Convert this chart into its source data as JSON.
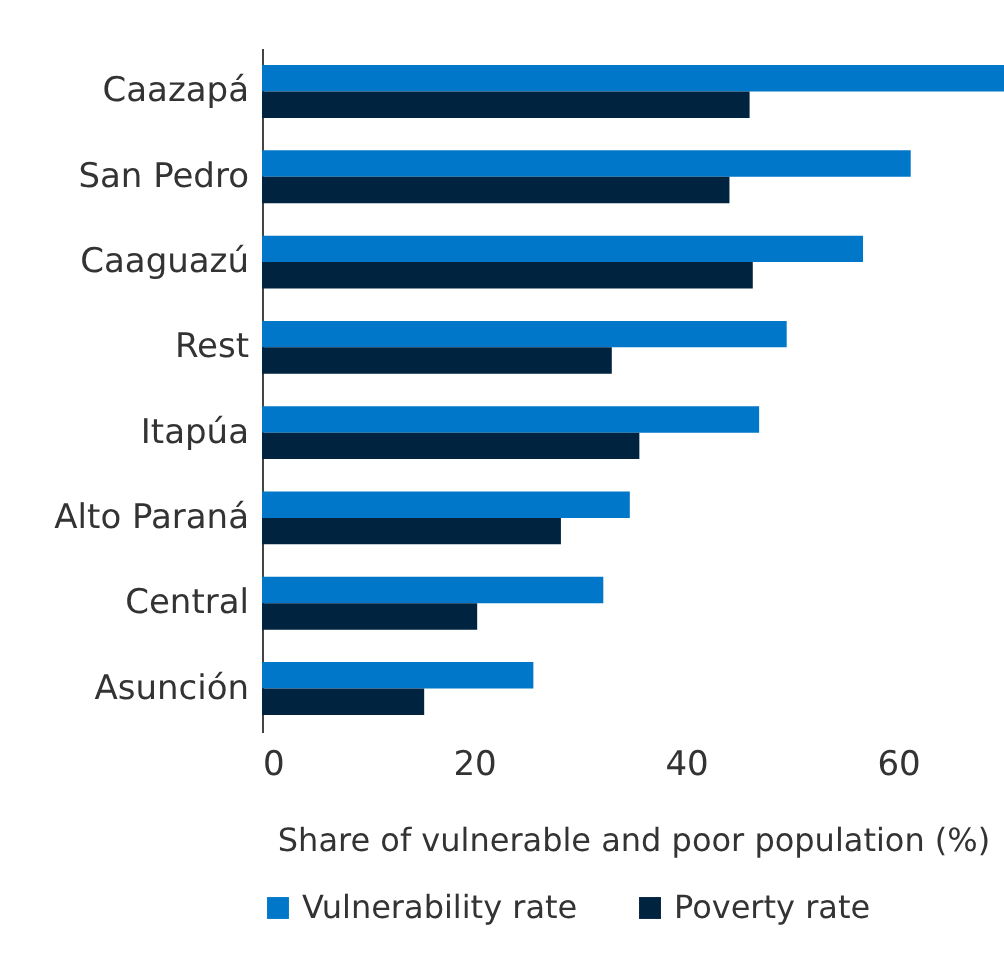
{
  "chart_data": {
    "type": "bar",
    "orientation": "horizontal",
    "xlabel": "Share of vulnerable and poor population (%)",
    "categories": [
      "Caazapá",
      "San Pedro",
      "Caaguazú",
      "Rest",
      "Itapúa",
      "Alto Paraná",
      "Central",
      "Asunción"
    ],
    "series": [
      {
        "name": "Vulnerability rate",
        "color": "#0077c8",
        "values": [
          70,
          61.2,
          56.7,
          49.5,
          46.9,
          34.7,
          32.2,
          25.6
        ]
      },
      {
        "name": "Poverty rate",
        "color": "#002340",
        "values": [
          46.0,
          44.1,
          46.3,
          33.0,
          35.6,
          28.2,
          20.3,
          15.3
        ]
      }
    ],
    "xlim": [
      0,
      70
    ],
    "xticks": [
      0,
      20,
      40,
      60
    ],
    "grid": false,
    "legend": "bottom"
  }
}
